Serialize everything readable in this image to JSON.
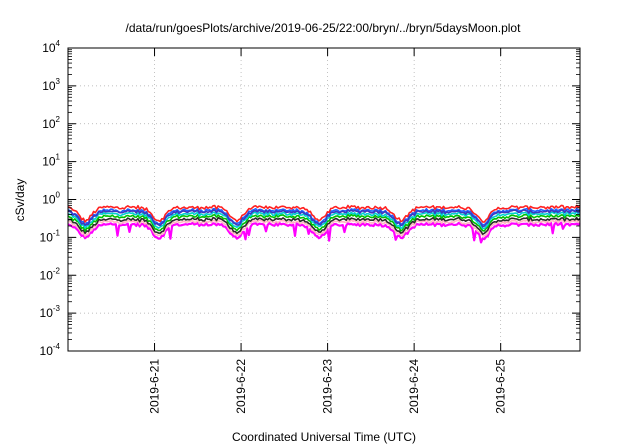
{
  "chart_data": {
    "type": "line",
    "title": "/data/run/goesPlots/archive/2019-06-25/22:00/bryn/../bryn/5daysMoon.plot",
    "xlabel": "Coordinated Universal Time (UTC)",
    "ylabel": "cSv/day",
    "x_tick_labels": [
      "2019-6-21",
      "2019-6-22",
      "2019-6-23",
      "2019-6-24",
      "2019-6-25"
    ],
    "y_scale": "log",
    "ylim": [
      0.0001,
      10000
    ],
    "y_ticks": [
      {
        "base": "10",
        "exp": "4"
      },
      {
        "base": "10",
        "exp": "3"
      },
      {
        "base": "10",
        "exp": "2"
      },
      {
        "base": "10",
        "exp": "1"
      },
      {
        "base": "10",
        "exp": "0"
      },
      {
        "base": "10",
        "exp": "-1"
      },
      {
        "base": "10",
        "exp": "-2"
      },
      {
        "base": "10",
        "exp": "-3"
      },
      {
        "base": "10",
        "exp": "-4"
      }
    ],
    "x_range_days": [
      "2019-06-20T00:00",
      "2019-06-25T22:00"
    ],
    "grid": true,
    "series_colors": [
      "#ff00ff",
      "#ffb6c1",
      "#2b2b2b",
      "#00c000",
      "#00d0d0",
      "#2060ff",
      "#ff2020",
      "#3a3ac0"
    ],
    "series": [
      {
        "color": "#ff00ff",
        "approx_level": 0.22
      },
      {
        "color": "#ffb6c1",
        "approx_level": 0.26
      },
      {
        "color": "#2b2b2b",
        "approx_level": 0.3
      },
      {
        "color": "#00c000",
        "approx_level": 0.36
      },
      {
        "color": "#00d0d0",
        "approx_level": 0.42
      },
      {
        "color": "#2060ff",
        "approx_level": 0.52
      },
      {
        "color": "#ff2020",
        "approx_level": 0.62
      },
      {
        "color": "#3a3ac0",
        "approx_level": 0.48
      }
    ]
  }
}
